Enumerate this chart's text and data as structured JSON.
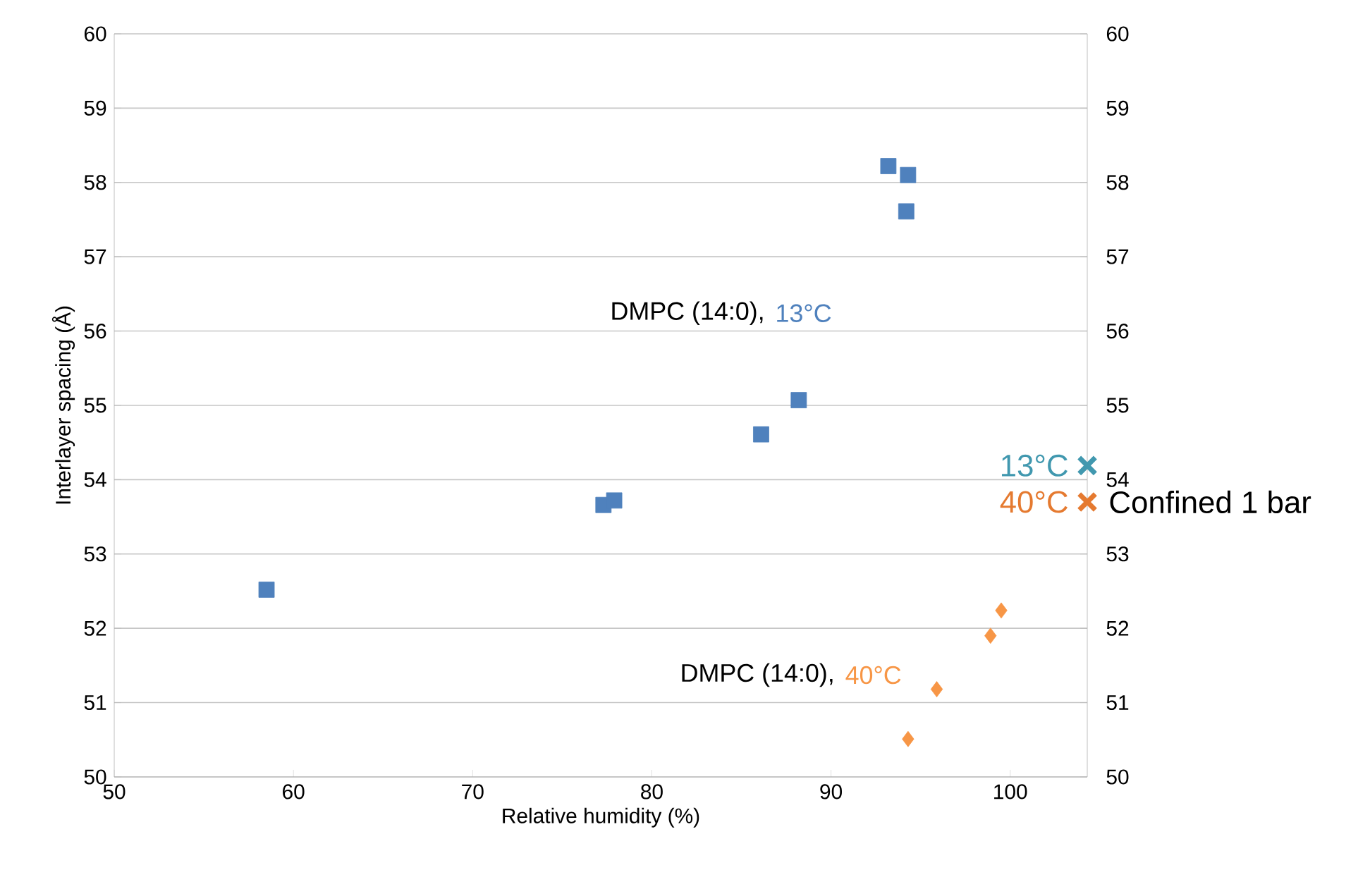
{
  "chart_data": {
    "type": "scatter",
    "xlabel": "Relative humidity (%)",
    "ylabel": "Interlayer spacing (Å)",
    "xlim": [
      50,
      104.3
    ],
    "ylim": [
      50,
      60
    ],
    "y2lim": [
      50,
      60
    ],
    "xticks": [
      50,
      60,
      70,
      80,
      90,
      100
    ],
    "yticks": [
      50,
      51,
      52,
      53,
      54,
      55,
      56,
      57,
      58,
      59,
      60
    ],
    "y2ticks": [
      50,
      51,
      52,
      53,
      54,
      55,
      56,
      57,
      58,
      59,
      60
    ],
    "grid": "y",
    "annotations": [
      "DMPC (14:0),",
      "DMPC (14:0),",
      {
        "text": "Confined 1 bar",
        "x": 104.3,
        "y": 53.7
      }
    ],
    "series": [
      {
        "name": "13°C",
        "color": "#4f81bd",
        "marker": "square",
        "x": [
          58.5,
          77.3,
          77.9,
          86.1,
          88.2,
          93.2,
          94.3,
          94.2
        ],
        "values": [
          52.52,
          53.66,
          53.72,
          54.61,
          55.07,
          58.22,
          58.1,
          57.61
        ]
      },
      {
        "name": "40°C",
        "color": "#f79646",
        "marker": "diamond",
        "x": [
          99.5,
          98.9,
          95.9,
          94.3
        ],
        "values": [
          52.24,
          51.9,
          51.18,
          50.51
        ]
      },
      {
        "name": "13°C",
        "color": "#4198af",
        "marker": "cross",
        "axis": "y2",
        "x": [
          104.3
        ],
        "values": [
          54.19
        ]
      },
      {
        "name": "40°C",
        "color": "#e57a30",
        "marker": "cross",
        "axis": "y2",
        "x": [
          104.3
        ],
        "values": [
          53.7
        ]
      }
    ]
  }
}
